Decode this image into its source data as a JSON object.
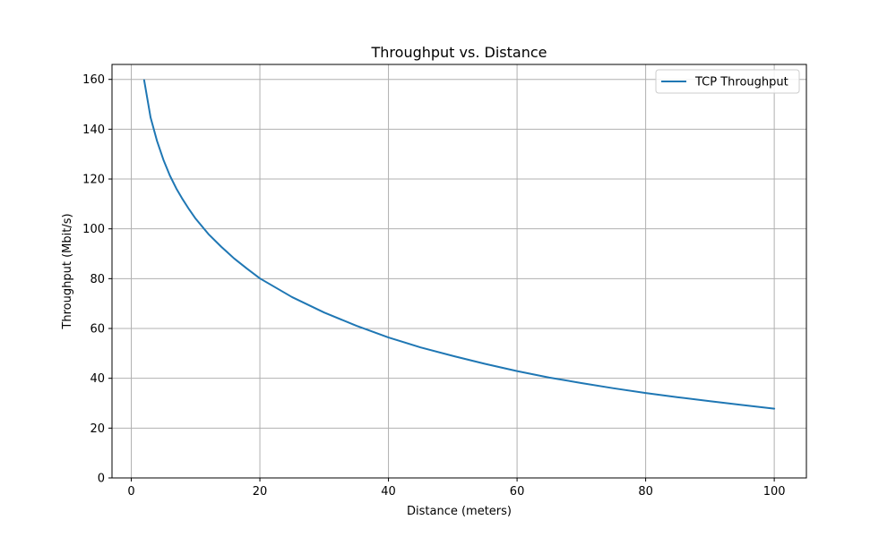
{
  "chart_data": {
    "type": "line",
    "title": "Throughput vs. Distance",
    "xlabel": "Distance (meters)",
    "ylabel": "Throughput (Mbit/s)",
    "xlim": [
      -3,
      105
    ],
    "ylim": [
      0,
      166
    ],
    "xticks": [
      0,
      20,
      40,
      60,
      80,
      100
    ],
    "yticks": [
      0,
      20,
      40,
      60,
      80,
      100,
      120,
      140,
      160
    ],
    "grid": true,
    "legend_position": "top-right",
    "series": [
      {
        "name": "TCP Throughput",
        "color": "#1f77b4",
        "x": [
          2,
          3,
          4,
          5,
          6,
          7,
          8,
          9,
          10,
          12,
          14,
          16,
          18,
          20,
          25,
          30,
          35,
          40,
          45,
          50,
          55,
          60,
          65,
          70,
          75,
          80,
          85,
          90,
          95,
          100
        ],
        "y": [
          159.7,
          144.7,
          135.3,
          127.7,
          121.4,
          116.2,
          111.8,
          107.8,
          104.1,
          97.9,
          92.8,
          88.1,
          84.0,
          80.1,
          72.6,
          66.4,
          61.1,
          56.4,
          52.4,
          49.0,
          45.8,
          42.9,
          40.3,
          38.1,
          36.0,
          34.1,
          32.4,
          30.8,
          29.3,
          27.8
        ]
      }
    ]
  }
}
